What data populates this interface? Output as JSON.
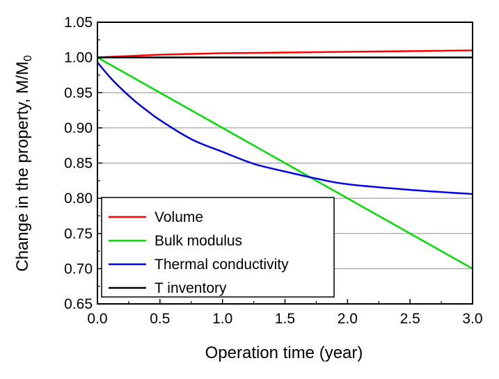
{
  "chart_data": {
    "type": "line",
    "title": "",
    "xlabel": "Operation time (year)",
    "ylabel": "Change in the property, M/M",
    "ylabel_sub": "0",
    "xlim": [
      0.0,
      3.0
    ],
    "ylim": [
      0.65,
      1.05
    ],
    "xticks": [
      "0.0",
      "0.5",
      "1.0",
      "1.5",
      "2.0",
      "2.5",
      "3.0"
    ],
    "yticks": [
      "0.65",
      "0.70",
      "0.75",
      "0.80",
      "0.85",
      "0.90",
      "0.95",
      "1.00",
      "1.05"
    ],
    "grid": "horizontal",
    "legend_position": "bottom-left",
    "series": [
      {
        "name": "Volume",
        "color": "#ff0000",
        "x": [
          0.0,
          0.5,
          1.0,
          1.5,
          2.0,
          2.5,
          3.0
        ],
        "y": [
          1.0,
          1.004,
          1.006,
          1.007,
          1.008,
          1.009,
          1.01
        ]
      },
      {
        "name": "Bulk modulus",
        "color": "#00e000",
        "x": [
          0.0,
          0.5,
          1.0,
          1.5,
          2.0,
          2.5,
          3.0
        ],
        "y": [
          1.0,
          0.95,
          0.9,
          0.85,
          0.8,
          0.75,
          0.7
        ]
      },
      {
        "name": "Thermal conductivity",
        "color": "#0000ee",
        "x": [
          0.0,
          0.1,
          0.2,
          0.3,
          0.4,
          0.5,
          0.75,
          1.0,
          1.25,
          1.5,
          1.75,
          2.0,
          2.5,
          3.0
        ],
        "y": [
          0.993,
          0.972,
          0.954,
          0.938,
          0.924,
          0.911,
          0.884,
          0.866,
          0.849,
          0.838,
          0.828,
          0.82,
          0.812,
          0.806
        ]
      },
      {
        "name": "T inventory",
        "color": "#000000",
        "x": [
          0.0,
          3.0
        ],
        "y": [
          1.0,
          1.0
        ]
      }
    ]
  }
}
